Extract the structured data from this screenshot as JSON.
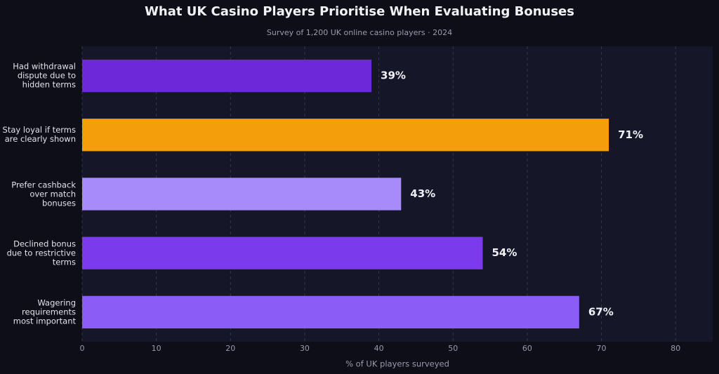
{
  "chart_data": {
    "type": "hbar",
    "title": "What UK Casino Players Prioritise When Evaluating Bonuses",
    "subtitle": "Survey of 1,200 UK online casino players · 2024",
    "x_label": "% of UK players surveyed",
    "categories": [
      "Had withdrawal dispute due to hidden terms",
      "Stay loyal if terms are clearly shown",
      "Prefer cashback over match bonuses",
      "Declined bonus due to restrictive terms",
      "Wagering requirements most important"
    ],
    "values": [
      39,
      71,
      43,
      54,
      67
    ],
    "value_labels": [
      "39%",
      "71%",
      "43%",
      "54%",
      "67%"
    ],
    "colors": [
      "#6d28d9",
      "#f59e0b",
      "#a78bfa",
      "#7c3aed",
      "#8b5cf6"
    ],
    "xlim": [
      0,
      85
    ],
    "xticks": [
      0,
      10,
      20,
      30,
      40,
      50,
      60,
      70,
      80
    ],
    "grid": true
  }
}
